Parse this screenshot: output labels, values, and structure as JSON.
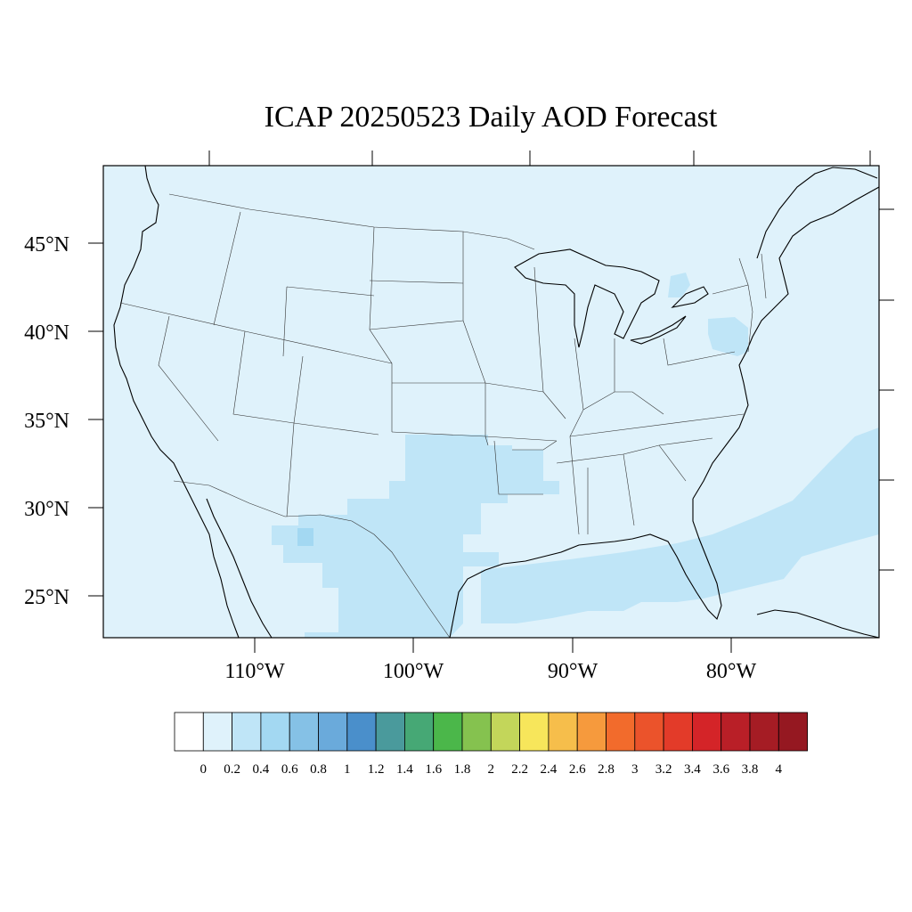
{
  "title": "ICAP 20250523 Daily AOD Forecast",
  "colors": {
    "background": "#ffffff",
    "ocean": "#dff2fb",
    "land": "#dff2fb",
    "aod_0_2_0_4": "#bfe5f7",
    "aod_0_4_0_6": "#a3d8f2"
  },
  "lat_labels": [
    "45°N",
    "40°N",
    "35°N",
    "30°N",
    "25°N"
  ],
  "lon_labels": [
    "110°W",
    "100°W",
    "90°W",
    "80°W"
  ],
  "colorbar": {
    "colors": [
      "#ffffff",
      "#dff2fb",
      "#bfe5f7",
      "#a3d8f2",
      "#85c1e6",
      "#6aaadb",
      "#4a8fcb",
      "#4a9a9c",
      "#46a875",
      "#4bb74a",
      "#85c24f",
      "#c3d65a",
      "#f7e65b",
      "#f6be4b",
      "#f69a3d",
      "#f26b2c",
      "#eb532b",
      "#e33b29",
      "#d42428",
      "#b91f27",
      "#a51c24",
      "#951821"
    ],
    "labels": [
      "0",
      "0.2",
      "0.4",
      "0.6",
      "0.8",
      "1",
      "1.2",
      "1.4",
      "1.6",
      "1.8",
      "2",
      "2.2",
      "2.4",
      "2.6",
      "2.8",
      "3",
      "3.2",
      "3.4",
      "3.6",
      "3.8",
      "4"
    ]
  }
}
